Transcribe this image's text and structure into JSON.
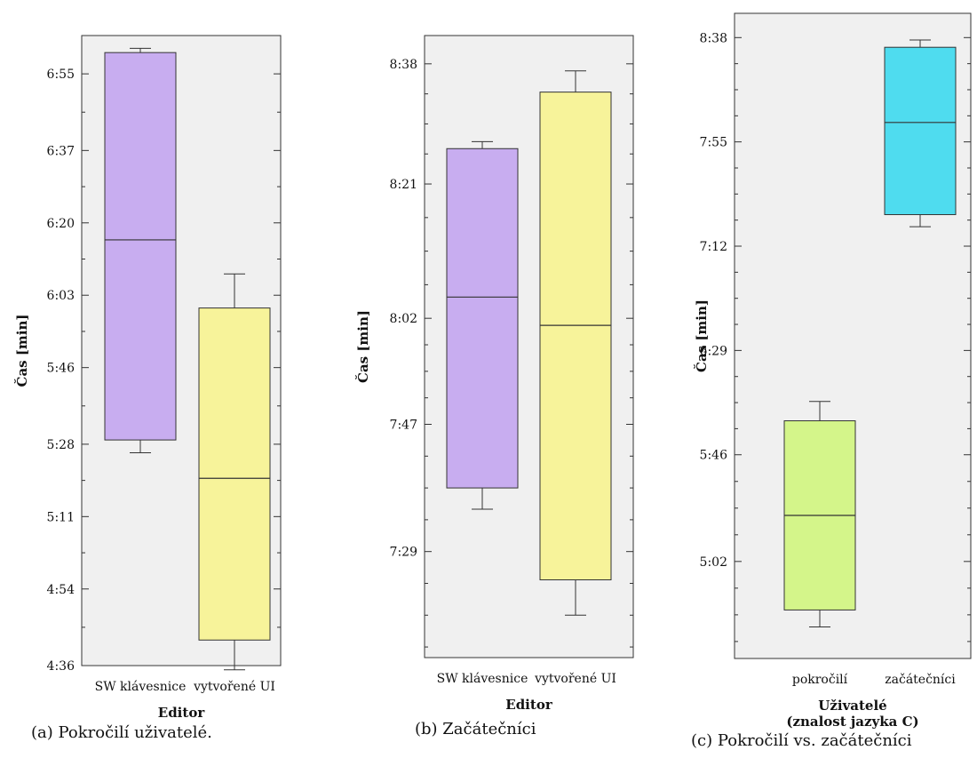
{
  "chart_data": [
    {
      "type": "box",
      "caption": "(a)  Pokročilí uživatelé.",
      "xlabel": "Editor",
      "ylabel": "Čas [min]",
      "ylim": [
        "4:36",
        "7:04"
      ],
      "yticks": [
        "4:36",
        "4:54",
        "5:11",
        "5:28",
        "5:46",
        "6:03",
        "6:20",
        "6:37",
        "6:55"
      ],
      "categories": [
        "SW klávesnice",
        "vytvořené UI"
      ],
      "boxes": [
        {
          "category": "SW klávesnice",
          "color": "#c8adf0",
          "whisker_low": "5:26",
          "q1": "5:29",
          "median": "6:16",
          "q3": "7:00",
          "whisker_high": "7:01"
        },
        {
          "category": "vytvořené UI",
          "color": "#f7f39a",
          "whisker_low": "4:35",
          "q1": "4:42",
          "median": "5:20",
          "q3": "6:00",
          "whisker_high": "6:08"
        }
      ]
    },
    {
      "type": "box",
      "caption": "(b)  Začátečníci",
      "xlabel": "Editor",
      "ylabel": "Čas [min]",
      "ylim": [
        "7:14",
        "8:42"
      ],
      "yticks": [
        "7:29",
        "7:47",
        "8:02",
        "8:21",
        "8:38"
      ],
      "categories": [
        "SW klávesnice",
        "vytvořené UI"
      ],
      "boxes": [
        {
          "category": "SW klávesnice",
          "color": "#c8adf0",
          "whisker_low": "7:35",
          "q1": "7:38",
          "median": "8:05",
          "q3": "8:26",
          "whisker_high": "8:27"
        },
        {
          "category": "vytvořené UI",
          "color": "#f7f39a",
          "whisker_low": "7:20",
          "q1": "7:25",
          "median": "8:01",
          "q3": "8:34",
          "whisker_high": "8:37"
        }
      ]
    },
    {
      "type": "box",
      "caption": "(c)  Pokročilí vs. začátečníci",
      "xlabel": "Uživatelé\n(znalost jazyka C)",
      "ylabel": "Čas [min]",
      "ylim": [
        "4:22",
        "8:48"
      ],
      "yticks": [
        "5:02",
        "5:46",
        "6:29",
        "7:12",
        "7:55",
        "8:38"
      ],
      "categories": [
        "pokročilí",
        "začátečníci"
      ],
      "boxes": [
        {
          "category": "pokročilí",
          "color": "#d4f58a",
          "whisker_low": "4:35",
          "q1": "4:42",
          "median": "5:21",
          "q3": "6:00",
          "whisker_high": "6:08"
        },
        {
          "category": "začátečníci",
          "color": "#4fdcef",
          "whisker_low": "7:20",
          "q1": "7:25",
          "median": "8:03",
          "q3": "8:34",
          "whisker_high": "8:37"
        }
      ]
    }
  ]
}
